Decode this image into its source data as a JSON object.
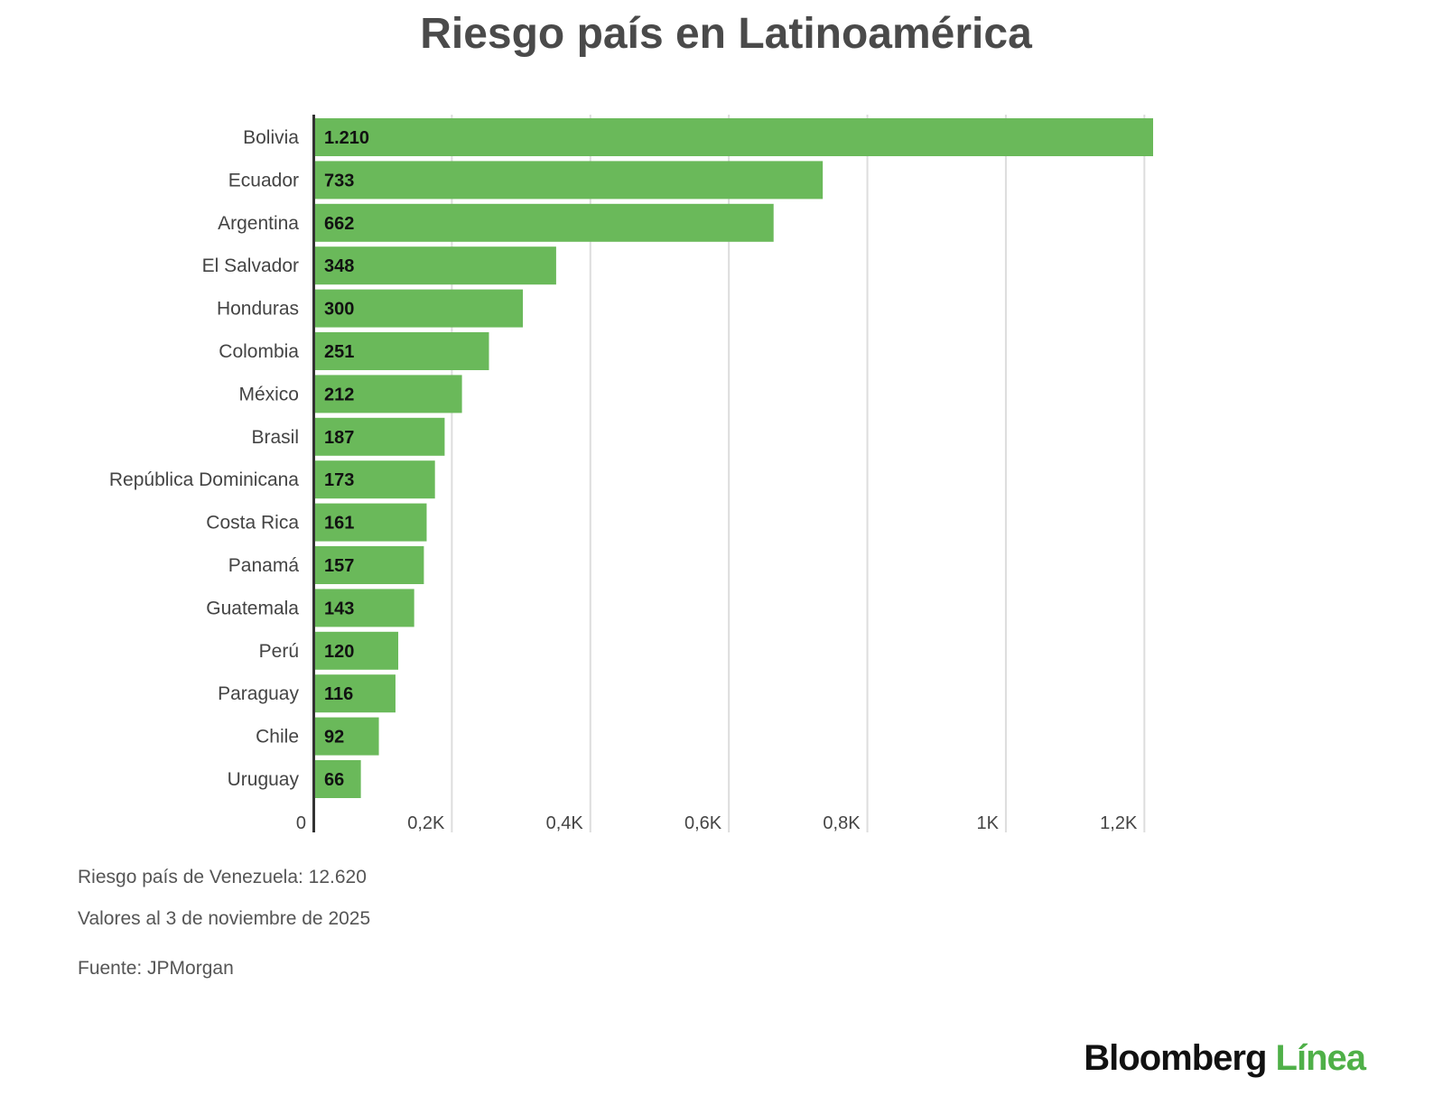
{
  "chart_data": {
    "type": "bar",
    "orientation": "horizontal",
    "title": "Riesgo país en Latinoamérica",
    "categories": [
      "Bolivia",
      "Ecuador",
      "Argentina",
      "El Salvador",
      "Honduras",
      "Colombia",
      "México",
      "Brasil",
      "República Dominicana",
      "Costa Rica",
      "Panamá",
      "Guatemala",
      "Perú",
      "Paraguay",
      "Chile",
      "Uruguay"
    ],
    "values": [
      1210,
      733,
      662,
      348,
      300,
      251,
      212,
      187,
      173,
      161,
      157,
      143,
      120,
      116,
      92,
      66
    ],
    "value_labels": [
      "1.210",
      "733",
      "662",
      "348",
      "300",
      "251",
      "212",
      "187",
      "173",
      "161",
      "157",
      "143",
      "120",
      "116",
      "92",
      "66"
    ],
    "x_ticks": [
      0,
      200,
      400,
      600,
      800,
      1000,
      1200
    ],
    "x_tick_labels": [
      "0",
      "0,2K",
      "0,4K",
      "0,6K",
      "0,8K",
      "1K",
      "1,2K"
    ],
    "xlim": [
      0,
      1210
    ],
    "bar_color": "#6ab95a",
    "grid": true
  },
  "notes": {
    "venezuela": "Riesgo país de Venezuela: 12.620",
    "date": "Valores al 3 de noviembre de 2025",
    "source": "Fuente: JPMorgan"
  },
  "logo": {
    "part1": "Bloomberg",
    "part2": "Línea"
  }
}
